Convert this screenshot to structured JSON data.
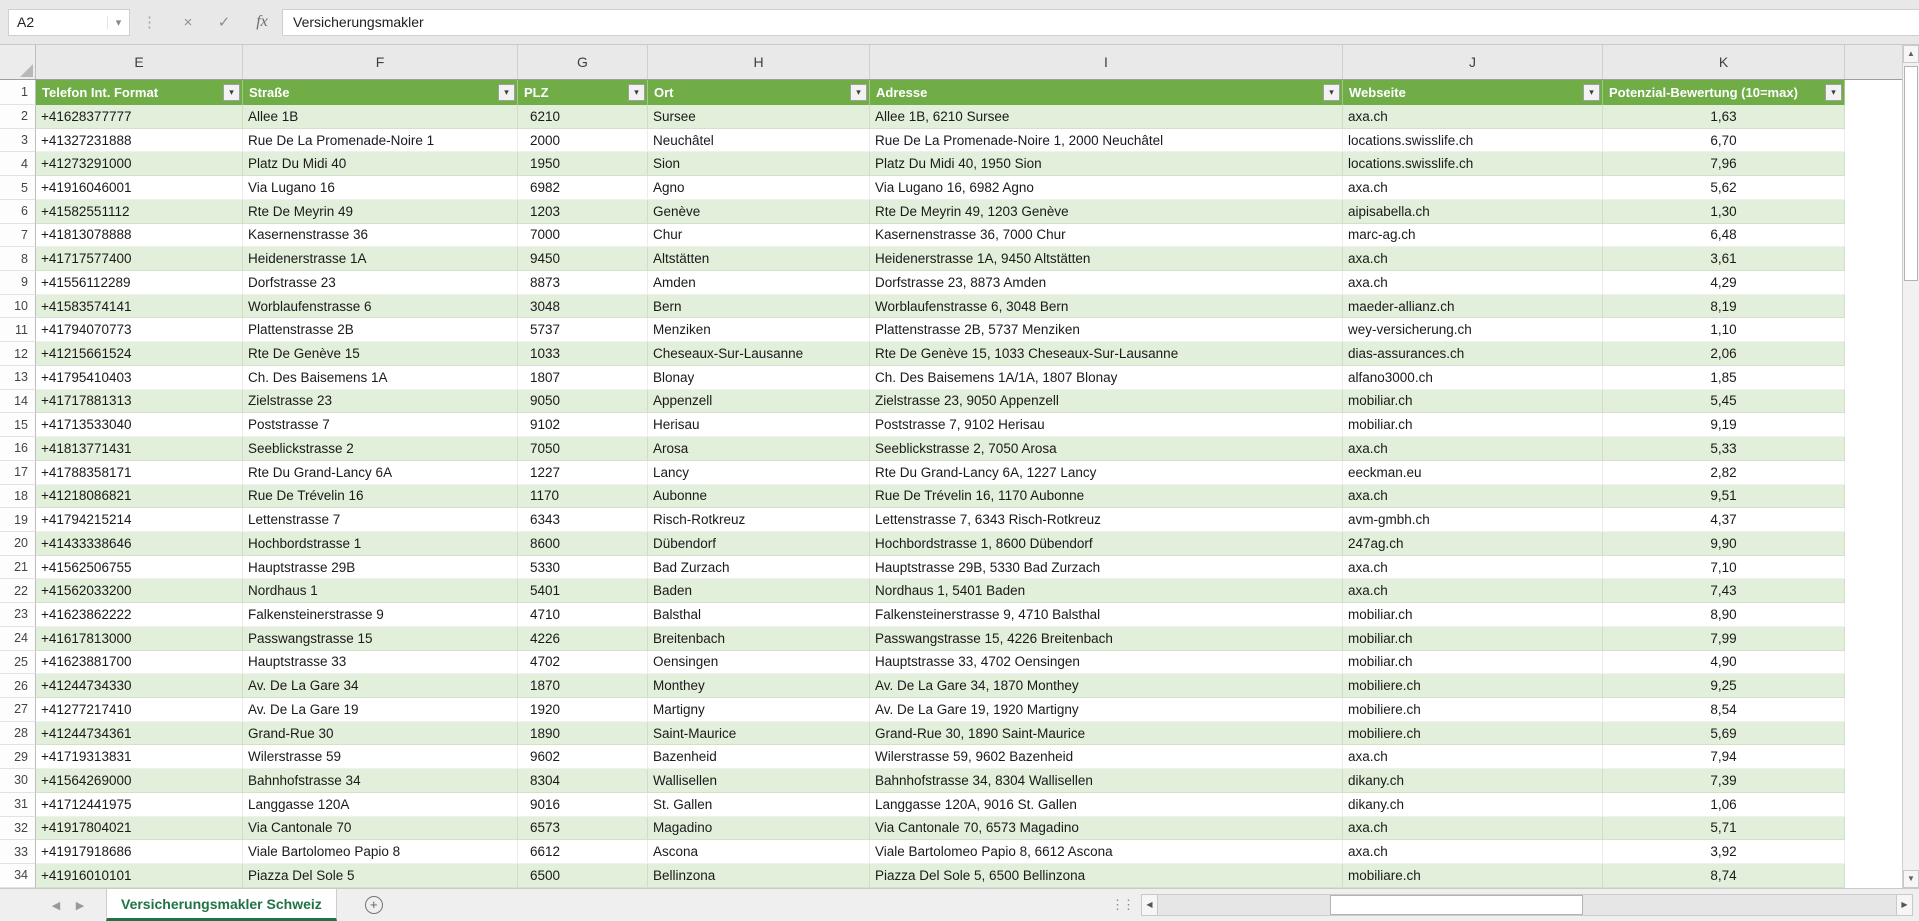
{
  "formula_bar": {
    "cell_reference": "A2",
    "formula": "Versicherungsmakler"
  },
  "icons": {
    "name_box_dropdown": "▾",
    "cancel": "×",
    "confirm": "✓",
    "function": "fx",
    "filter_dropdown": "▾",
    "scroll_up": "▲",
    "scroll_down": "▼",
    "scroll_left": "◀",
    "scroll_right": "▶",
    "tab_nav_left": "◀",
    "tab_nav_right": "▶",
    "add_sheet": "+",
    "grip_dots": "⋮"
  },
  "colors": {
    "table_header_green": "#70AD47",
    "band_row_green": "#E2EFDA",
    "active_tab_green": "#217346"
  },
  "grid": {
    "column_letters": [
      "E",
      "F",
      "G",
      "H",
      "I",
      "J",
      "K"
    ],
    "header_row_number": "1",
    "headers": [
      "Telefon Int. Format",
      "Straße",
      "PLZ",
      "Ort",
      "Adresse",
      "Webseite",
      "Potenzial-Bewertung (10=max)"
    ],
    "rows": [
      {
        "n": "2",
        "cells": [
          "+41628377777",
          "Allee 1B",
          "6210",
          "Sursee",
          "Allee 1B, 6210 Sursee",
          "axa.ch",
          "1,63"
        ]
      },
      {
        "n": "3",
        "cells": [
          "+41327231888",
          "Rue De La Promenade-Noire 1",
          "2000",
          "Neuchâtel",
          "Rue De La Promenade-Noire 1, 2000 Neuchâtel",
          "locations.swisslife.ch",
          "6,70"
        ]
      },
      {
        "n": "4",
        "cells": [
          "+41273291000",
          "Platz Du Midi 40",
          "1950",
          "Sion",
          "Platz Du Midi 40, 1950 Sion",
          "locations.swisslife.ch",
          "7,96"
        ]
      },
      {
        "n": "5",
        "cells": [
          "+41916046001",
          "Via Lugano 16",
          "6982",
          "Agno",
          "Via Lugano 16, 6982 Agno",
          "axa.ch",
          "5,62"
        ]
      },
      {
        "n": "6",
        "cells": [
          "+41582551112",
          "Rte De Meyrin 49",
          "1203",
          "Genève",
          "Rte De Meyrin 49, 1203 Genève",
          "aipisabella.ch",
          "1,30"
        ]
      },
      {
        "n": "7",
        "cells": [
          "+41813078888",
          "Kasernenstrasse 36",
          "7000",
          "Chur",
          "Kasernenstrasse 36, 7000 Chur",
          "marc-ag.ch",
          "6,48"
        ]
      },
      {
        "n": "8",
        "cells": [
          "+41717577400",
          "Heidenerstrasse 1A",
          "9450",
          "Altstätten",
          "Heidenerstrasse 1A, 9450 Altstätten",
          "axa.ch",
          "3,61"
        ]
      },
      {
        "n": "9",
        "cells": [
          "+41556112289",
          "Dorfstrasse 23",
          "8873",
          "Amden",
          "Dorfstrasse 23, 8873 Amden",
          "axa.ch",
          "4,29"
        ]
      },
      {
        "n": "10",
        "cells": [
          "+41583574141",
          "Worblaufenstrasse 6",
          "3048",
          "Bern",
          "Worblaufenstrasse 6, 3048 Bern",
          "maeder-allianz.ch",
          "8,19"
        ]
      },
      {
        "n": "11",
        "cells": [
          "+41794070773",
          "Plattenstrasse 2B",
          "5737",
          "Menziken",
          "Plattenstrasse 2B, 5737 Menziken",
          "wey-versicherung.ch",
          "1,10"
        ]
      },
      {
        "n": "12",
        "cells": [
          "+41215661524",
          "Rte De Genève 15",
          "1033",
          "Cheseaux-Sur-Lausanne",
          "Rte De Genève 15, 1033 Cheseaux-Sur-Lausanne",
          "dias-assurances.ch",
          "2,06"
        ]
      },
      {
        "n": "13",
        "cells": [
          "+41795410403",
          "Ch. Des Baisemens 1A",
          "1807",
          "Blonay",
          "Ch. Des Baisemens 1A/1A, 1807 Blonay",
          "alfano3000.ch",
          "1,85"
        ]
      },
      {
        "n": "14",
        "cells": [
          "+41717881313",
          "Zielstrasse 23",
          "9050",
          "Appenzell",
          "Zielstrasse 23, 9050 Appenzell",
          "mobiliar.ch",
          "5,45"
        ]
      },
      {
        "n": "15",
        "cells": [
          "+41713533040",
          "Poststrasse 7",
          "9102",
          "Herisau",
          "Poststrasse 7, 9102 Herisau",
          "mobiliar.ch",
          "9,19"
        ]
      },
      {
        "n": "16",
        "cells": [
          "+41813771431",
          "Seeblickstrasse 2",
          "7050",
          "Arosa",
          "Seeblickstrasse 2, 7050 Arosa",
          "axa.ch",
          "5,33"
        ]
      },
      {
        "n": "17",
        "cells": [
          "+41788358171",
          "Rte Du Grand-Lancy 6A",
          "1227",
          "Lancy",
          "Rte Du Grand-Lancy 6A, 1227 Lancy",
          "eeckman.eu",
          "2,82"
        ]
      },
      {
        "n": "18",
        "cells": [
          "+41218086821",
          "Rue De Trévelin 16",
          "1170",
          "Aubonne",
          "Rue De Trévelin 16, 1170 Aubonne",
          "axa.ch",
          "9,51"
        ]
      },
      {
        "n": "19",
        "cells": [
          "+41794215214",
          "Lettenstrasse 7",
          "6343",
          "Risch-Rotkreuz",
          "Lettenstrasse 7, 6343 Risch-Rotkreuz",
          "avm-gmbh.ch",
          "4,37"
        ]
      },
      {
        "n": "20",
        "cells": [
          "+41433338646",
          "Hochbordstrasse 1",
          "8600",
          "Dübendorf",
          "Hochbordstrasse 1, 8600 Dübendorf",
          "247ag.ch",
          "9,90"
        ]
      },
      {
        "n": "21",
        "cells": [
          "+41562506755",
          "Hauptstrasse 29B",
          "5330",
          "Bad Zurzach",
          "Hauptstrasse 29B, 5330 Bad Zurzach",
          "axa.ch",
          "7,10"
        ]
      },
      {
        "n": "22",
        "cells": [
          "+41562033200",
          "Nordhaus 1",
          "5401",
          "Baden",
          "Nordhaus 1, 5401 Baden",
          "axa.ch",
          "7,43"
        ]
      },
      {
        "n": "23",
        "cells": [
          "+41623862222",
          "Falkensteinerstrasse 9",
          "4710",
          "Balsthal",
          "Falkensteinerstrasse 9, 4710 Balsthal",
          "mobiliar.ch",
          "8,90"
        ]
      },
      {
        "n": "24",
        "cells": [
          "+41617813000",
          "Passwangstrasse 15",
          "4226",
          "Breitenbach",
          "Passwangstrasse 15, 4226 Breitenbach",
          "mobiliar.ch",
          "7,99"
        ]
      },
      {
        "n": "25",
        "cells": [
          "+41623881700",
          "Hauptstrasse 33",
          "4702",
          "Oensingen",
          "Hauptstrasse 33, 4702 Oensingen",
          "mobiliar.ch",
          "4,90"
        ]
      },
      {
        "n": "26",
        "cells": [
          "+41244734330",
          "Av. De La Gare 34",
          "1870",
          "Monthey",
          "Av. De La Gare 34, 1870 Monthey",
          "mobiliere.ch",
          "9,25"
        ]
      },
      {
        "n": "27",
        "cells": [
          "+41277217410",
          "Av. De La Gare 19",
          "1920",
          "Martigny",
          "Av. De La Gare 19, 1920 Martigny",
          "mobiliere.ch",
          "8,54"
        ]
      },
      {
        "n": "28",
        "cells": [
          "+41244734361",
          "Grand-Rue 30",
          "1890",
          "Saint-Maurice",
          "Grand-Rue 30, 1890 Saint-Maurice",
          "mobiliere.ch",
          "5,69"
        ]
      },
      {
        "n": "29",
        "cells": [
          "+41719313831",
          "Wilerstrasse 59",
          "9602",
          "Bazenheid",
          "Wilerstrasse 59, 9602 Bazenheid",
          "axa.ch",
          "7,94"
        ]
      },
      {
        "n": "30",
        "cells": [
          "+41564269000",
          "Bahnhofstrasse 34",
          "8304",
          "Wallisellen",
          "Bahnhofstrasse 34, 8304 Wallisellen",
          "dikany.ch",
          "7,39"
        ]
      },
      {
        "n": "31",
        "cells": [
          "+41712441975",
          "Langgasse 120A",
          "9016",
          "St. Gallen",
          "Langgasse 120A, 9016 St. Gallen",
          "dikany.ch",
          "1,06"
        ]
      },
      {
        "n": "32",
        "cells": [
          "+41917804021",
          "Via Cantonale 70",
          "6573",
          "Magadino",
          "Via Cantonale 70, 6573 Magadino",
          "axa.ch",
          "5,71"
        ]
      },
      {
        "n": "33",
        "cells": [
          "+41917918686",
          "Viale Bartolomeo Papio 8",
          "6612",
          "Ascona",
          "Viale Bartolomeo Papio 8, 6612 Ascona",
          "axa.ch",
          "3,92"
        ]
      },
      {
        "n": "34",
        "cells": [
          "+41916010101",
          "Piazza Del Sole 5",
          "6500",
          "Bellinzona",
          "Piazza Del Sole 5, 6500 Bellinzona",
          "mobiliare.ch",
          "8,74"
        ]
      }
    ]
  },
  "sheet_tab": {
    "label": "Versicherungsmakler Schweiz"
  }
}
